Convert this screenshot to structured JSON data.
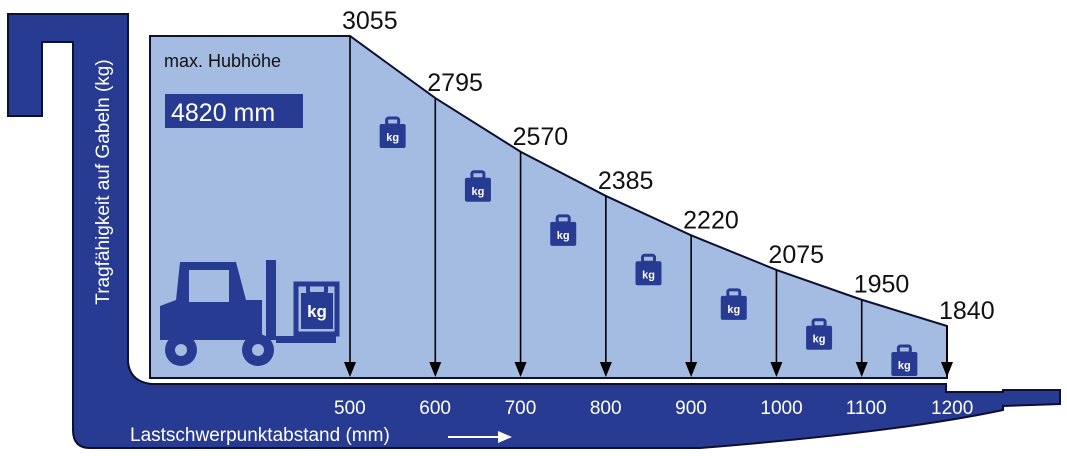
{
  "colors": {
    "primary": "#283b93",
    "area": "#a4bbe2",
    "outline": "#0d1030",
    "white": "#ffffff"
  },
  "icons": {
    "weight": "weight-kg-icon",
    "forklift": "forklift-icon",
    "arrow": "arrow-right-icon"
  },
  "chart_data": {
    "type": "area",
    "ylabel": "Tragfähigkeit auf Gabeln (kg)",
    "xlabel": "Lastschwerpunktabstand (mm)",
    "x": [
      500,
      600,
      700,
      800,
      900,
      1000,
      1100,
      1200
    ],
    "values": [
      3055,
      2795,
      2570,
      2385,
      2220,
      2075,
      1950,
      1840
    ],
    "weight_label": "kg",
    "annotation": {
      "label": "max. Hubhöhe",
      "value": "4820 mm"
    },
    "grid": false,
    "legend": "none"
  }
}
